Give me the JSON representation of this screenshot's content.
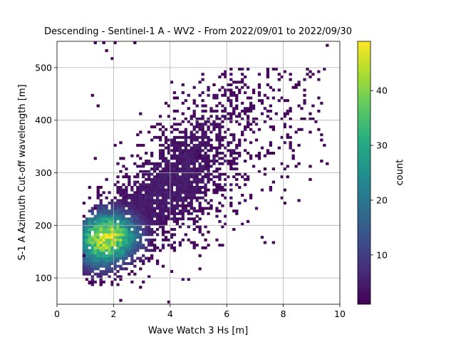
{
  "chart_data": {
    "type": "heatmap",
    "title": "Descending - Sentinel-1 A - WV2 - From 2022/09/01 to 2022/09/30",
    "xlabel": "Wave Watch 3 Hs [m]",
    "ylabel": "S-1 A Azimuth Cut-off wavelength [m]",
    "xlim": [
      0,
      10
    ],
    "ylim": [
      50,
      550
    ],
    "x_ticks": [
      0,
      2,
      4,
      6,
      8,
      10
    ],
    "y_ticks": [
      100,
      200,
      300,
      400,
      500
    ],
    "grid": true,
    "colormap": "viridis",
    "colorbar": {
      "label": "count",
      "range": [
        1,
        49
      ],
      "ticks": [
        10,
        20,
        30,
        40
      ]
    },
    "bin_size": {
      "x": 0.1,
      "y": 5
    },
    "density_model": {
      "core": {
        "x": 1.8,
        "y": 180,
        "peak_count": 48
      },
      "ridge_slope": 42,
      "ridge_intercept": 110
    },
    "sparse_bins": [
      [
        1.3,
        545
      ],
      [
        1.6,
        545
      ],
      [
        2.0,
        545
      ],
      [
        2.7,
        545
      ],
      [
        1.7,
        530
      ],
      [
        1.9,
        515
      ],
      [
        1.2,
        445
      ],
      [
        1.4,
        425
      ],
      [
        1.3,
        325
      ],
      [
        2.0,
        350
      ],
      [
        2.2,
        355
      ],
      [
        3.9,
        52
      ],
      [
        2.2,
        55
      ],
      [
        7.4,
        495
      ],
      [
        7.6,
        495
      ],
      [
        7.8,
        485
      ],
      [
        8.2,
        475
      ],
      [
        8.5,
        465
      ],
      [
        8.8,
        495
      ],
      [
        9.5,
        540
      ],
      [
        9.2,
        380
      ],
      [
        8.9,
        410
      ],
      [
        7.6,
        380
      ],
      [
        8.4,
        310
      ],
      [
        7.5,
        350
      ],
      [
        6.7,
        440
      ],
      [
        6.9,
        450
      ],
      [
        5.0,
        330
      ],
      [
        5.3,
        265
      ],
      [
        5.8,
        255
      ],
      [
        6.3,
        285
      ],
      [
        4.5,
        400
      ],
      [
        4.0,
        385
      ],
      [
        3.3,
        165
      ],
      [
        3.4,
        160
      ],
      [
        3.6,
        150
      ],
      [
        3.9,
        185
      ],
      [
        4.2,
        205
      ],
      [
        4.5,
        235
      ],
      [
        1.0,
        95
      ],
      [
        1.1,
        88
      ],
      [
        1.5,
        85
      ],
      [
        0.9,
        140
      ],
      [
        0.9,
        215
      ],
      [
        1.1,
        270
      ],
      [
        1.3,
        230
      ],
      [
        7.3,
        305
      ],
      [
        7.0,
        330
      ],
      [
        6.5,
        370
      ],
      [
        6.0,
        410
      ],
      [
        5.6,
        425
      ],
      [
        5.9,
        445
      ],
      [
        8.0,
        435
      ]
    ]
  }
}
